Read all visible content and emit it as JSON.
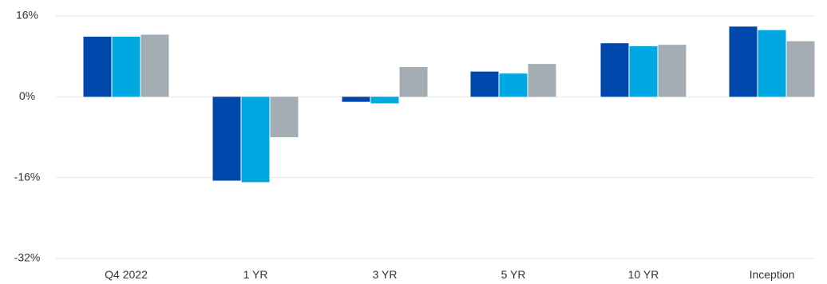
{
  "chart_data": {
    "type": "bar",
    "categories": [
      "Q4 2022",
      "1 YR",
      "3 YR",
      "5 YR",
      "10 YR",
      "Inception"
    ],
    "series": [
      {
        "values": [
          11.9,
          -16.6,
          -1.0,
          5.0,
          10.6,
          13.9
        ]
      },
      {
        "values": [
          11.9,
          -16.9,
          -1.3,
          4.6,
          10.0,
          13.2
        ]
      },
      {
        "values": [
          12.3,
          -8.0,
          5.9,
          6.5,
          10.3,
          11.0
        ]
      }
    ],
    "y_ticks": [
      16,
      0,
      -16,
      -32
    ],
    "y_tick_labels": [
      "16%",
      "0%",
      "-16%",
      "-32%"
    ],
    "ylim": [
      -32,
      16
    ],
    "grid": true,
    "legend": "none",
    "colors": [
      "#0047ab",
      "#00a8e1",
      "#a5adb4"
    ]
  }
}
